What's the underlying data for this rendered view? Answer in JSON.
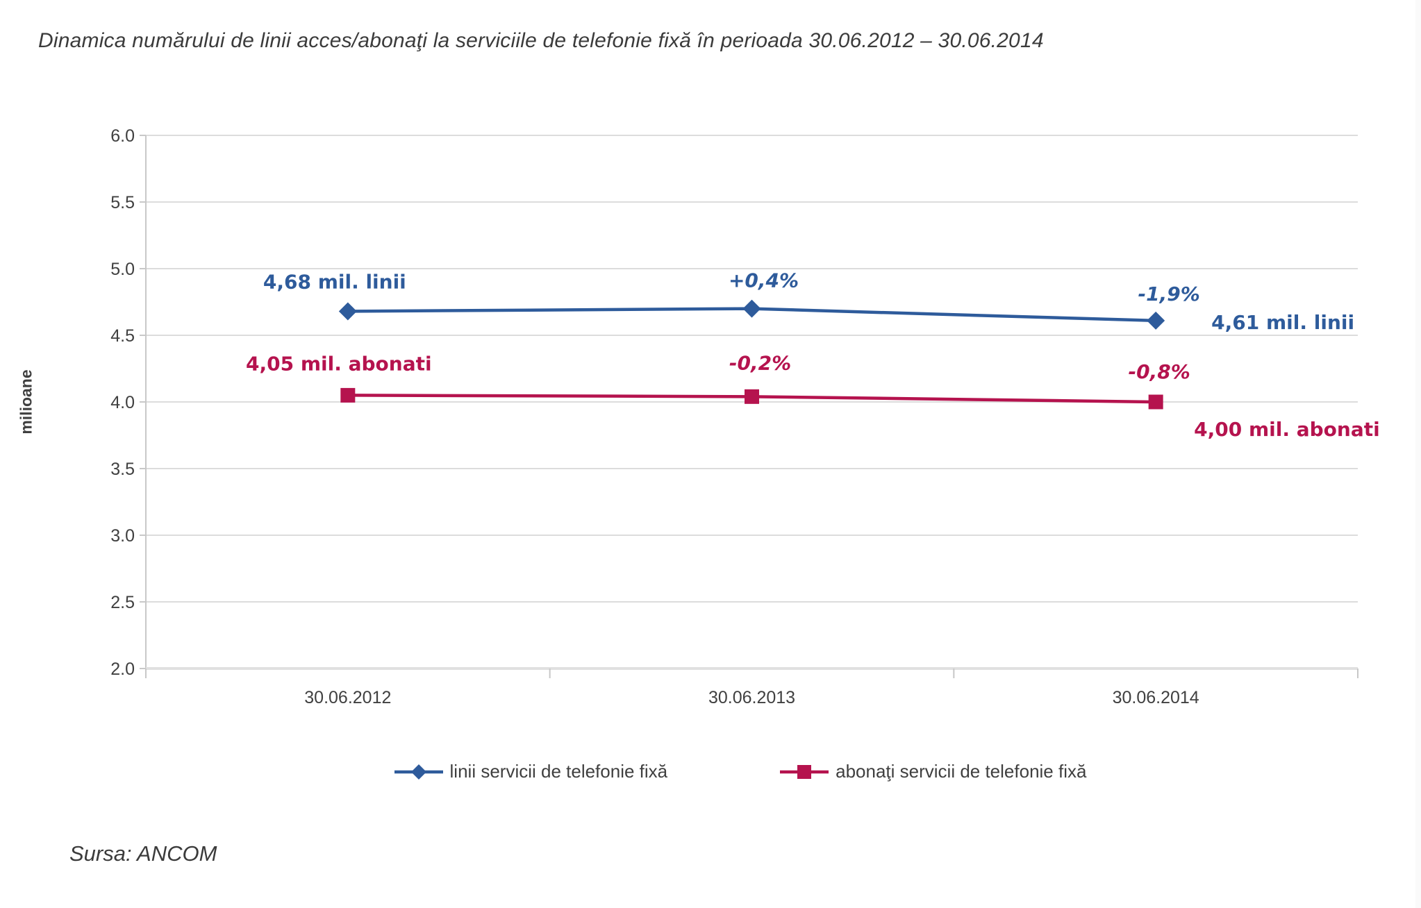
{
  "title": "Dinamica numărului de linii acces/abonaţi la serviciile de telefonie fixă în perioada 30.06.2012 – 30.06.2014",
  "source": "Sursa: ANCOM",
  "colors": {
    "grid": "#dcdcdc",
    "axis_line": "#c8c8c8",
    "x_axis_line": "#e0e0e0",
    "tick_text": "#404040",
    "title_text": "#3b3b3b",
    "blue": "#2e5b9b",
    "red": "#b5134e"
  },
  "chart_data": {
    "type": "line",
    "title": "Dinamica numărului de linii acces/abonaţi la serviciile de telefonie fixă în perioada 30.06.2012 – 30.06.2014",
    "ylabel": "milioane",
    "ylim": [
      2.0,
      6.0
    ],
    "ytick_step": 0.5,
    "ytick_labels": [
      "6.0",
      "5.5",
      "5.0",
      "4.5",
      "4.0",
      "3.5",
      "3.0",
      "2.5",
      "2.0"
    ],
    "categories": [
      "30.06.2012",
      "30.06.2013",
      "30.06.2014"
    ],
    "grid": true,
    "legend_position": "bottom",
    "series": [
      {
        "name": "linii servicii de telefonie fixă",
        "color": "#2e5b9b",
        "marker": "diamond",
        "values": [
          4.68,
          4.7,
          4.61
        ],
        "point_labels": [
          "4,68 mil. linii",
          "+0,4%",
          "-1,9%"
        ],
        "end_label": "4,61 mil. linii"
      },
      {
        "name": "abonaţi servicii de telefonie fixă",
        "color": "#b5134e",
        "marker": "square",
        "values": [
          4.05,
          4.04,
          4.0
        ],
        "point_labels": [
          "4,05 mil. abonati",
          "-0,2%",
          "-0,8%"
        ],
        "end_label": "4,00 mil. abonati"
      }
    ]
  }
}
